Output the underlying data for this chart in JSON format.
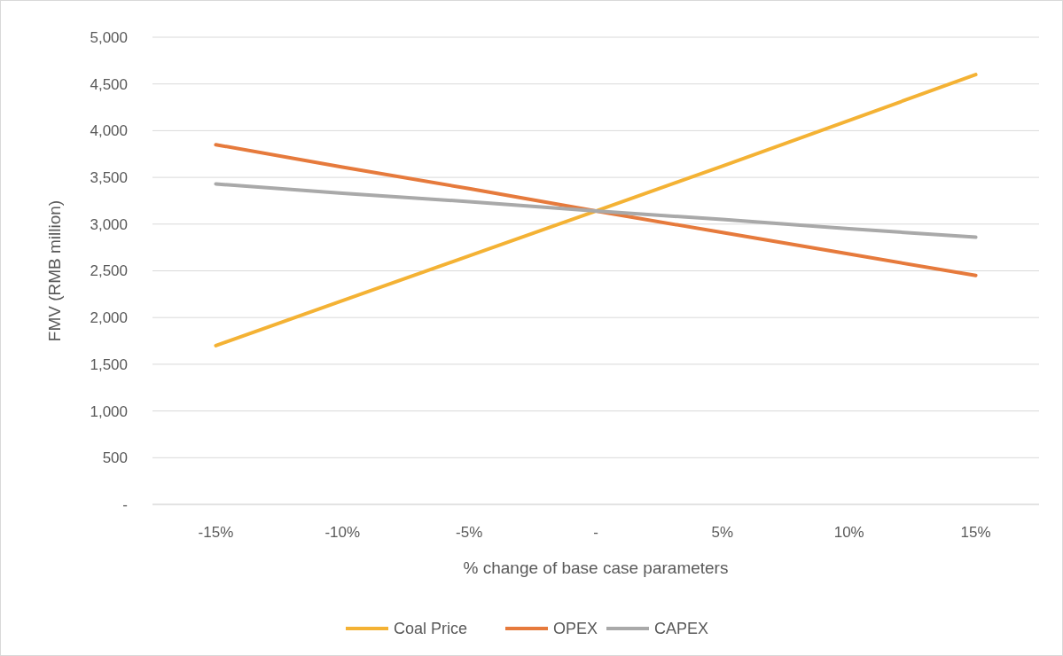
{
  "chart_data": {
    "type": "line",
    "xlabel": "% change of base case parameters",
    "ylabel": "FMV (RMB million)",
    "categories": [
      "-15%",
      "-10%",
      "-5%",
      "-",
      "5%",
      "10%",
      "15%"
    ],
    "series": [
      {
        "name": "Coal Price",
        "color": "#f4b234",
        "values": [
          1700,
          2180,
          2660,
          3140,
          3620,
          4110,
          4600
        ]
      },
      {
        "name": "OPEX",
        "color": "#e67a3c",
        "values": [
          3850,
          3610,
          3380,
          3140,
          2910,
          2680,
          2450
        ]
      },
      {
        "name": "CAPEX",
        "color": "#a9a9a9",
        "values": [
          3430,
          3330,
          3240,
          3140,
          3050,
          2950,
          2860
        ]
      }
    ],
    "ylim": [
      0,
      5000
    ],
    "yticks": [
      {
        "value": 0,
        "label": "-"
      },
      500,
      {
        "value": 1000,
        "label": "1,000"
      },
      {
        "value": 1500,
        "label": "1,500"
      },
      {
        "value": 2000,
        "label": "2,000"
      },
      {
        "value": 2500,
        "label": "2,500"
      },
      {
        "value": 3000,
        "label": "3,000"
      },
      {
        "value": 3500,
        "label": "3,500"
      },
      {
        "value": 4000,
        "label": "4,000"
      },
      {
        "value": 4500,
        "label": "4,500"
      },
      {
        "value": 5000,
        "label": "5,000"
      }
    ],
    "grid": "y",
    "legend": "bottom",
    "marker": "none",
    "line_style": "solid"
  }
}
